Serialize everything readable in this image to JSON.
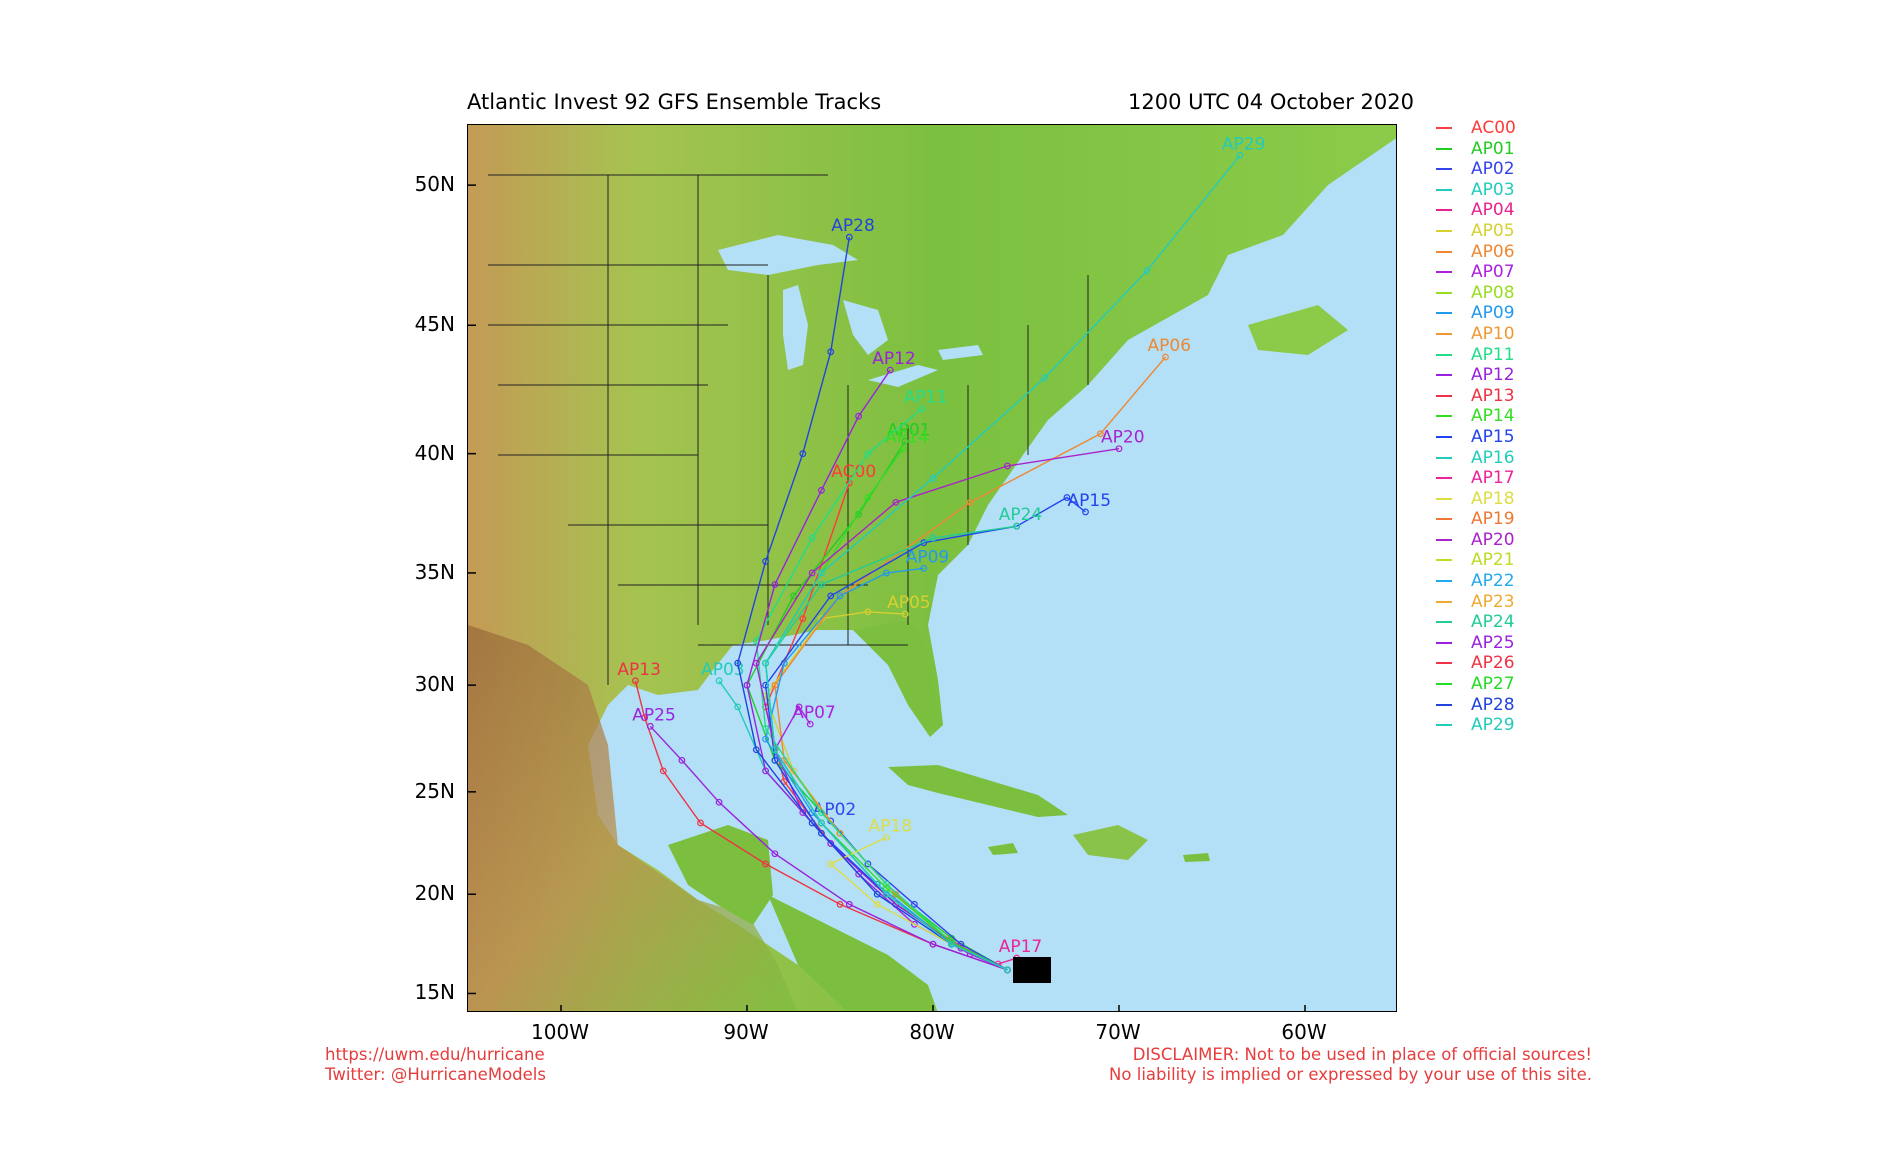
{
  "header": {
    "title_left": "Atlantic Invest 92 GFS Ensemble Tracks",
    "title_right": "1200 UTC 04 October 2020"
  },
  "map": {
    "lon_range": [
      -105,
      -55
    ],
    "lat_range": [
      14,
      52
    ],
    "lat_labels": [
      "50N",
      "45N",
      "40N",
      "35N",
      "30N",
      "25N",
      "20N",
      "15N"
    ],
    "lat_values": [
      50,
      45,
      40,
      35,
      30,
      25,
      20,
      15
    ],
    "lon_labels": [
      "100W",
      "90W",
      "80W",
      "70W",
      "60W"
    ],
    "lon_values": [
      -100,
      -90,
      -80,
      -70,
      -60
    ],
    "ocean_color": "#b3e0f7",
    "land_color": "#7dbf3e"
  },
  "legend": [
    {
      "name": "AC00",
      "color": "#ff3a3a"
    },
    {
      "name": "AP01",
      "color": "#22cc22"
    },
    {
      "name": "AP02",
      "color": "#3344ee"
    },
    {
      "name": "AP03",
      "color": "#22ccbb"
    },
    {
      "name": "AP04",
      "color": "#e82290"
    },
    {
      "name": "AP05",
      "color": "#d6d030"
    },
    {
      "name": "AP06",
      "color": "#ee8833"
    },
    {
      "name": "AP07",
      "color": "#aa22dd"
    },
    {
      "name": "AP08",
      "color": "#99dd22"
    },
    {
      "name": "AP09",
      "color": "#2299ee"
    },
    {
      "name": "AP10",
      "color": "#ee9933"
    },
    {
      "name": "AP11",
      "color": "#22dd88"
    },
    {
      "name": "AP12",
      "color": "#9922dd"
    },
    {
      "name": "AP13",
      "color": "#ee3344"
    },
    {
      "name": "AP14",
      "color": "#33dd22"
    },
    {
      "name": "AP15",
      "color": "#2244ee"
    },
    {
      "name": "AP16",
      "color": "#22ccbb"
    },
    {
      "name": "AP17",
      "color": "#ee2299"
    },
    {
      "name": "AP18",
      "color": "#dddd44"
    },
    {
      "name": "AP19",
      "color": "#ee7733"
    },
    {
      "name": "AP20",
      "color": "#aa22cc"
    },
    {
      "name": "AP21",
      "color": "#bbdd22"
    },
    {
      "name": "AP22",
      "color": "#22aaee"
    },
    {
      "name": "AP23",
      "color": "#eeaa33"
    },
    {
      "name": "AP24",
      "color": "#22cc99"
    },
    {
      "name": "AP25",
      "color": "#9922dd"
    },
    {
      "name": "AP26",
      "color": "#ee3344"
    },
    {
      "name": "AP27",
      "color": "#22dd22"
    },
    {
      "name": "AP28",
      "color": "#2244dd"
    },
    {
      "name": "AP29",
      "color": "#22ccbb"
    }
  ],
  "tracks": [
    {
      "name": "AC00",
      "label": "AC00",
      "points": [
        [
          -76,
          16.2
        ],
        [
          -78.5,
          17.4
        ],
        [
          -82,
          19.5
        ],
        [
          -85.5,
          22.5
        ],
        [
          -88,
          25.5
        ],
        [
          -89,
          29
        ],
        [
          -87,
          33
        ],
        [
          -84.5,
          38.8
        ]
      ]
    },
    {
      "name": "AP01",
      "label": "AP01",
      "points": [
        [
          -76,
          16.2
        ],
        [
          -79,
          17.8
        ],
        [
          -82,
          20
        ],
        [
          -85,
          23
        ],
        [
          -88.5,
          26.5
        ],
        [
          -90,
          30
        ],
        [
          -87.5,
          34
        ],
        [
          -84,
          37.5
        ],
        [
          -81.5,
          40.5
        ]
      ]
    },
    {
      "name": "AP02",
      "label": "AP02",
      "points": [
        [
          -76,
          16.2
        ],
        [
          -78.5,
          17.5
        ],
        [
          -81,
          19.5
        ],
        [
          -83.5,
          21.5
        ],
        [
          -85.5,
          23.6
        ]
      ]
    },
    {
      "name": "AP03",
      "label": "AP03",
      "points": [
        [
          -76,
          16.2
        ],
        [
          -79,
          17.5
        ],
        [
          -83,
          20
        ],
        [
          -86,
          23
        ],
        [
          -89,
          26
        ],
        [
          -90.5,
          29
        ],
        [
          -91.5,
          30.2
        ]
      ]
    },
    {
      "name": "AP05",
      "label": "AP05",
      "points": [
        [
          -76,
          16.2
        ],
        [
          -79,
          17.5
        ],
        [
          -82,
          20
        ],
        [
          -85,
          23
        ],
        [
          -87.5,
          26
        ],
        [
          -89,
          29.5
        ],
        [
          -86,
          33
        ],
        [
          -83.5,
          33.3
        ],
        [
          -81.5,
          33.2
        ]
      ]
    },
    {
      "name": "AP06",
      "label": "AP06",
      "points": [
        [
          -76,
          16.2
        ],
        [
          -79,
          17.5
        ],
        [
          -82,
          20
        ],
        [
          -85,
          23
        ],
        [
          -88,
          26.5
        ],
        [
          -88.5,
          30
        ],
        [
          -85,
          34
        ],
        [
          -78,
          38
        ],
        [
          -71,
          40.8
        ],
        [
          -67.5,
          43.8
        ]
      ]
    },
    {
      "name": "AP07",
      "label": "AP07",
      "points": [
        [
          -76,
          16.2
        ],
        [
          -78,
          17
        ],
        [
          -81,
          18.5
        ],
        [
          -84,
          21
        ],
        [
          -87,
          24
        ],
        [
          -88.5,
          27
        ],
        [
          -87.2,
          29
        ],
        [
          -86.6,
          28.2
        ]
      ]
    },
    {
      "name": "AP09",
      "label": "AP09",
      "points": [
        [
          -76,
          16.2
        ],
        [
          -79,
          17.5
        ],
        [
          -83,
          20.5
        ],
        [
          -86.5,
          24
        ],
        [
          -89,
          27.5
        ],
        [
          -88,
          31
        ],
        [
          -85,
          34
        ],
        [
          -82.5,
          35
        ],
        [
          -80.5,
          35.2
        ]
      ]
    },
    {
      "name": "AP11",
      "label": "AP11",
      "points": [
        [
          -76,
          16.2
        ],
        [
          -79,
          17.6
        ],
        [
          -82.5,
          20.5
        ],
        [
          -86,
          24
        ],
        [
          -89,
          28
        ],
        [
          -89.5,
          32
        ],
        [
          -86.5,
          36.5
        ],
        [
          -83.5,
          40
        ],
        [
          -80.6,
          41.8
        ]
      ]
    },
    {
      "name": "AP12",
      "label": "AP12",
      "points": [
        [
          -76,
          16.2
        ],
        [
          -78.5,
          17.3
        ],
        [
          -82,
          19.5
        ],
        [
          -85.5,
          22.5
        ],
        [
          -89,
          26
        ],
        [
          -90,
          30
        ],
        [
          -88.5,
          34.5
        ],
        [
          -86,
          38.5
        ],
        [
          -84,
          41.5
        ],
        [
          -82.3,
          43.3
        ]
      ]
    },
    {
      "name": "AP13",
      "label": "AP13",
      "points": [
        [
          -76,
          16.2
        ],
        [
          -80,
          17.5
        ],
        [
          -85,
          19.5
        ],
        [
          -89,
          21.5
        ],
        [
          -92.5,
          23.5
        ],
        [
          -94.5,
          26
        ],
        [
          -95.5,
          28.5
        ],
        [
          -96,
          30.2
        ]
      ]
    },
    {
      "name": "AP14",
      "label": "AP14",
      "points": [
        [
          -76,
          16.2
        ],
        [
          -79,
          17.6
        ],
        [
          -82.5,
          20.3
        ],
        [
          -86,
          23.5
        ],
        [
          -88.5,
          27
        ],
        [
          -89,
          31
        ],
        [
          -86,
          35
        ],
        [
          -83.5,
          38.2
        ],
        [
          -81.6,
          40.2
        ]
      ]
    },
    {
      "name": "AP15",
      "label": "AP15",
      "points": [
        [
          -76,
          16.2
        ],
        [
          -79,
          17.5
        ],
        [
          -82.5,
          20
        ],
        [
          -86,
          23
        ],
        [
          -88.5,
          26.5
        ],
        [
          -89,
          30
        ],
        [
          -85.5,
          34
        ],
        [
          -80.5,
          36.3
        ],
        [
          -75.5,
          37
        ],
        [
          -72.8,
          38.2
        ],
        [
          -71.8,
          37.6
        ]
      ]
    },
    {
      "name": "AP17",
      "label": "AP17",
      "points": [
        [
          -76.5,
          16.5
        ],
        [
          -75.5,
          16.8
        ]
      ]
    },
    {
      "name": "AP18",
      "label": "AP18",
      "points": [
        [
          -76,
          16.2
        ],
        [
          -79,
          17.5
        ],
        [
          -83,
          19.5
        ],
        [
          -85.5,
          21.5
        ],
        [
          -82.5,
          22.8
        ]
      ]
    },
    {
      "name": "AP20",
      "label": "AP20",
      "points": [
        [
          -76,
          16.2
        ],
        [
          -79,
          17.5
        ],
        [
          -82.5,
          20
        ],
        [
          -86,
          23.5
        ],
        [
          -88.5,
          27
        ],
        [
          -89.5,
          31
        ],
        [
          -86.5,
          35
        ],
        [
          -82,
          38
        ],
        [
          -76,
          39.5
        ],
        [
          -70,
          40.2
        ]
      ]
    },
    {
      "name": "AP24",
      "label": "AP24",
      "points": [
        [
          -76,
          16.2
        ],
        [
          -79,
          17.5
        ],
        [
          -82.5,
          20
        ],
        [
          -86,
          23.5
        ],
        [
          -88.5,
          27
        ],
        [
          -89,
          31
        ],
        [
          -86,
          34.5
        ],
        [
          -80,
          36.5
        ],
        [
          -75.5,
          37
        ]
      ]
    },
    {
      "name": "AP25",
      "label": "AP25",
      "points": [
        [
          -76,
          16.2
        ],
        [
          -80,
          17.5
        ],
        [
          -84.5,
          19.5
        ],
        [
          -88.5,
          22
        ],
        [
          -91.5,
          24.5
        ],
        [
          -93.5,
          26.5
        ],
        [
          -95.2,
          28.1
        ]
      ]
    },
    {
      "name": "AP28",
      "label": "AP28",
      "points": [
        [
          -76,
          16.2
        ],
        [
          -79,
          17.5
        ],
        [
          -83,
          20
        ],
        [
          -86.5,
          23.5
        ],
        [
          -89.5,
          27
        ],
        [
          -90.5,
          31
        ],
        [
          -89,
          35.5
        ],
        [
          -87,
          40
        ],
        [
          -85.5,
          44
        ],
        [
          -84.5,
          48.2
        ]
      ]
    },
    {
      "name": "AP29",
      "label": "AP29",
      "points": [
        [
          -76,
          16.2
        ],
        [
          -79,
          17.5
        ],
        [
          -82.5,
          20
        ],
        [
          -86,
          23.5
        ],
        [
          -88.5,
          27
        ],
        [
          -89,
          31
        ],
        [
          -86,
          35
        ],
        [
          -80,
          39
        ],
        [
          -74,
          43
        ],
        [
          -68.5,
          47
        ],
        [
          -63.5,
          51
        ]
      ]
    }
  ]
}
